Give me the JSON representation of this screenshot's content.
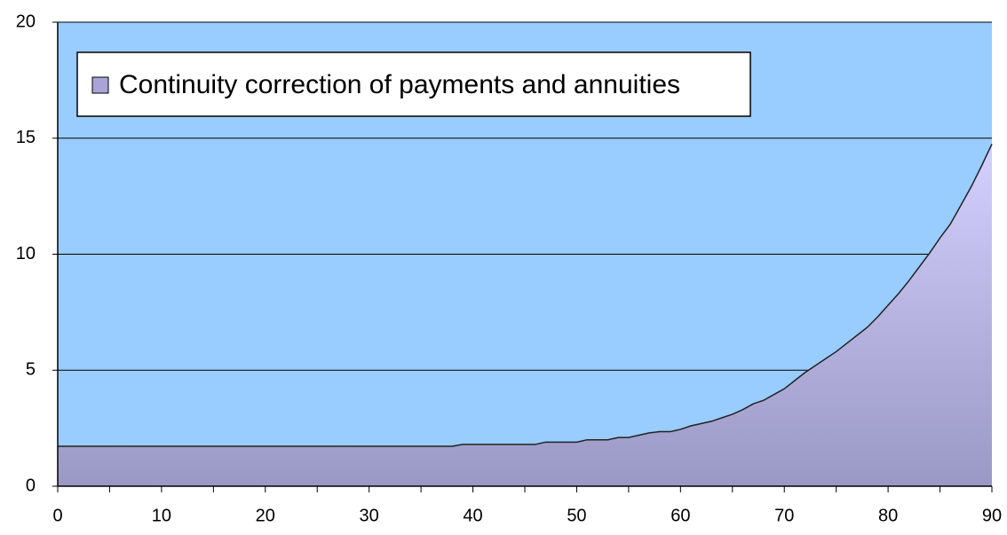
{
  "chart_data": {
    "type": "area",
    "legend": "Continuity correction of payments and annuities",
    "legend_position": "upper left",
    "background": "#99ccff",
    "color": "#a8a4d8",
    "grid": true,
    "x": [
      0,
      1,
      2,
      3,
      4,
      5,
      6,
      7,
      8,
      9,
      10,
      11,
      12,
      13,
      14,
      15,
      16,
      17,
      18,
      19,
      20,
      21,
      22,
      23,
      24,
      25,
      26,
      27,
      28,
      29,
      30,
      31,
      32,
      33,
      34,
      35,
      36,
      37,
      38,
      39,
      40,
      41,
      42,
      43,
      44,
      45,
      46,
      47,
      48,
      49,
      50,
      51,
      52,
      53,
      54,
      55,
      56,
      57,
      58,
      59,
      60,
      61,
      62,
      63,
      64,
      65,
      66,
      67,
      68,
      69,
      70,
      71,
      72,
      73,
      74,
      75,
      76,
      77,
      78,
      79,
      80,
      81,
      82,
      83,
      84,
      85,
      86,
      87,
      88,
      89,
      90
    ],
    "values": [
      1.72,
      1.72,
      1.72,
      1.72,
      1.72,
      1.72,
      1.72,
      1.72,
      1.72,
      1.72,
      1.72,
      1.72,
      1.72,
      1.72,
      1.72,
      1.72,
      1.72,
      1.72,
      1.72,
      1.72,
      1.72,
      1.72,
      1.72,
      1.72,
      1.72,
      1.72,
      1.72,
      1.72,
      1.72,
      1.72,
      1.72,
      1.72,
      1.72,
      1.72,
      1.72,
      1.72,
      1.72,
      1.72,
      1.72,
      1.8,
      1.8,
      1.8,
      1.8,
      1.8,
      1.8,
      1.8,
      1.8,
      1.9,
      1.9,
      1.9,
      1.9,
      2.0,
      2.0,
      2.0,
      2.1,
      2.1,
      2.2,
      2.3,
      2.35,
      2.35,
      2.45,
      2.6,
      2.7,
      2.8,
      2.95,
      3.1,
      3.3,
      3.55,
      3.7,
      3.95,
      4.2,
      4.55,
      4.9,
      5.2,
      5.5,
      5.8,
      6.15,
      6.5,
      6.85,
      7.3,
      7.8,
      8.3,
      8.85,
      9.45,
      10.05,
      10.7,
      11.3,
      12.1,
      12.9,
      13.8,
      14.75
    ],
    "xlim": [
      0,
      90
    ],
    "xticks": [
      0,
      10,
      20,
      30,
      40,
      50,
      60,
      70,
      80,
      90
    ],
    "ylim": [
      0,
      20
    ],
    "yticks": [
      0,
      5,
      10,
      15,
      20
    ]
  }
}
